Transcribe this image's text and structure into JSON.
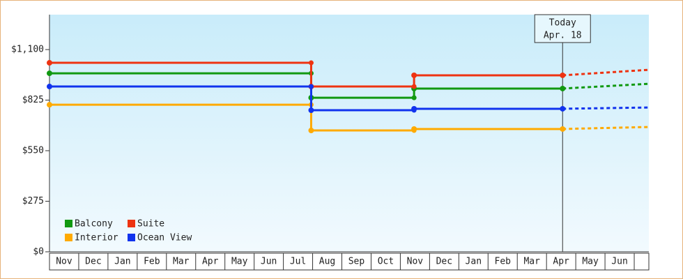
{
  "chart_data": {
    "type": "step-line",
    "categories": [
      "Nov",
      "Dec",
      "Jan",
      "Feb",
      "Mar",
      "Apr",
      "May",
      "Jun",
      "Jul",
      "Aug",
      "Sep",
      "Oct",
      "Nov",
      "Dec",
      "Jan",
      "Feb",
      "Mar",
      "Apr",
      "May",
      "Jun"
    ],
    "x": [
      0,
      8.95,
      12.47,
      17.55
    ],
    "forecast_x": [
      17.55,
      20.5
    ],
    "xlim": [
      0,
      20.5
    ],
    "ylim": [
      0,
      1290
    ],
    "yticks": [
      {
        "value": 0,
        "label": "$0"
      },
      {
        "value": 275,
        "label": "$275"
      },
      {
        "value": 550,
        "label": "$550"
      },
      {
        "value": 825,
        "label": "$825"
      },
      {
        "value": 1100,
        "label": "$1,100"
      }
    ],
    "legend": "bottom-left",
    "annotation": [
      "Today",
      "Apr. 18"
    ],
    "series": [
      {
        "name": "Balcony",
        "color": "#119911",
        "values": [
          971,
          838,
          888,
          888
        ],
        "forecast": [
          888,
          914
        ]
      },
      {
        "name": "Suite",
        "color": "#ee3311",
        "values": [
          1028,
          899,
          960,
          960
        ],
        "forecast": [
          960,
          990
        ]
      },
      {
        "name": "Interior",
        "color": "#ffaa00",
        "values": [
          800,
          660,
          668,
          668
        ],
        "forecast": [
          668,
          679
        ]
      },
      {
        "name": "Ocean View",
        "color": "#1133ee",
        "values": [
          899,
          770,
          778,
          778
        ],
        "forecast": [
          778,
          785
        ]
      }
    ]
  }
}
